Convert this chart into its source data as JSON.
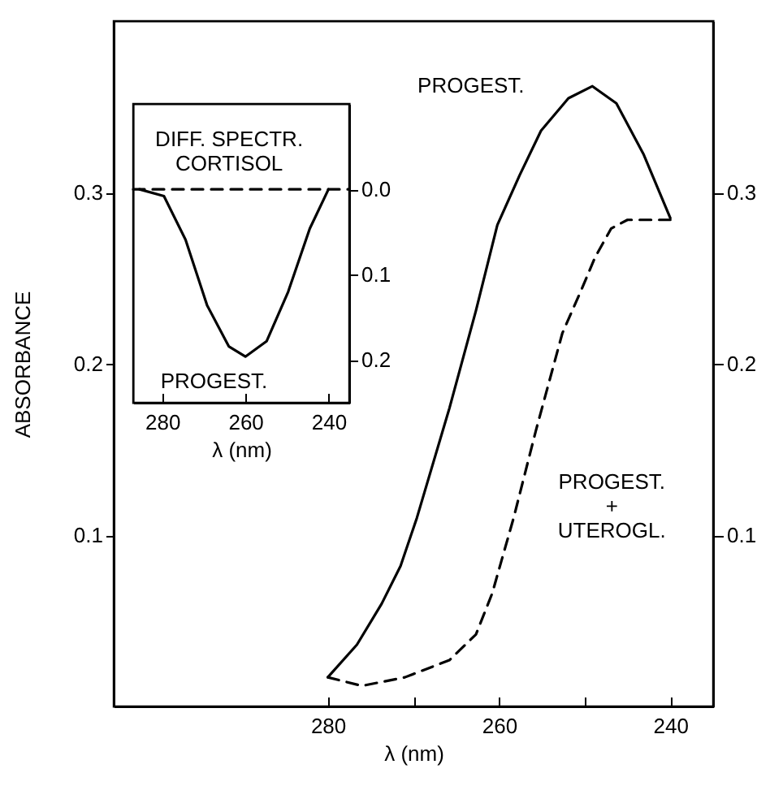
{
  "chart_data": [
    {
      "type": "line",
      "xlabel": "λ (nm)",
      "ylabel": "ABSORBANCE",
      "grid": false,
      "xlim": [
        305,
        235
      ],
      "xticks": [
        280,
        {
          "value": 270,
          "label": null
        },
        260,
        {
          "value": 250,
          "label": null
        },
        240
      ],
      "ylim": [
        0,
        0.4
      ],
      "yticks": [
        0.1,
        0.2,
        0.3
      ],
      "y2lim": [
        0,
        0.4
      ],
      "y2ticks": [
        0.1,
        0.2,
        0.3
      ],
      "series": [
        {
          "color": "#000000",
          "line_style": "solid",
          "x": [
            280,
            276.6,
            273.7,
            271.5,
            269.6,
            265.8,
            262.7,
            260.2,
            257.6,
            255.1,
            251.9,
            249.1,
            246.3,
            243.1,
            240
          ],
          "values": [
            0.017,
            0.036,
            0.06,
            0.082,
            0.11,
            0.174,
            0.231,
            0.281,
            0.31,
            0.336,
            0.355,
            0.362,
            0.352,
            0.322,
            0.285
          ]
        },
        {
          "color": "#000000",
          "line_style": "dashed",
          "x": [
            280,
            276,
            271,
            265.8,
            262.7,
            260.8,
            258.3,
            255.7,
            252.6,
            250.4,
            248.8,
            246.9,
            245,
            240
          ],
          "values": [
            0.017,
            0.012,
            0.017,
            0.027,
            0.042,
            0.066,
            0.11,
            0.161,
            0.218,
            0.243,
            0.262,
            0.279,
            0.284,
            0.284
          ]
        }
      ],
      "annotations": [
        "PROGEST.",
        "PROGEST.\n+\nUTEROGL."
      ]
    },
    {
      "type": "line",
      "xlabel": "λ (nm)",
      "grid": false,
      "xlim": [
        287,
        235
      ],
      "xticks": [
        280,
        260,
        240
      ],
      "ylim": [
        0.25,
        -0.1
      ],
      "yticks": [
        {
          "value": 0,
          "label": "0.0"
        },
        0.1,
        0.2
      ],
      "series": [
        {
          "color": "#000000",
          "line_style": "solid",
          "x": [
            285.5,
            279.6,
            274.4,
            269.2,
            264,
            260,
            254.9,
            249.7,
            244.5,
            240
          ],
          "values": [
            0,
            0.008,
            0.059,
            0.136,
            0.184,
            0.196,
            0.178,
            0.12,
            0.046,
            0
          ]
        },
        {
          "color": "#000000",
          "line_style": "dashed",
          "x": [
            287,
            235
          ],
          "values": [
            0,
            0
          ]
        }
      ],
      "annotations": [
        "DIFF. SPECTR.\nCORTISOL",
        "PROGEST."
      ]
    }
  ]
}
